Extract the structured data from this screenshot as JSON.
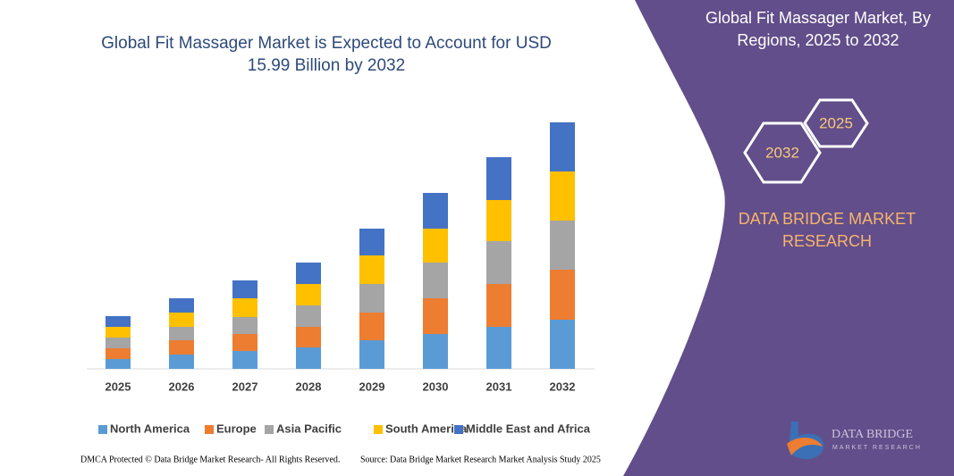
{
  "chart_data": {
    "type": "stacked_bar",
    "title": "Global Fit Massager Market is Expected to Account for USD 15.99 Billion by 2032",
    "categories": [
      "2025",
      "2026",
      "2027",
      "2028",
      "2029",
      "2030",
      "2031",
      "2032"
    ],
    "series": [
      {
        "name": "North America",
        "color": "#5b9bd5",
        "values": [
          11,
          16,
          20,
          24,
          32,
          39,
          47,
          55
        ]
      },
      {
        "name": "Europe",
        "color": "#ed7d31",
        "values": [
          12,
          16,
          19,
          23,
          31,
          40,
          48,
          56
        ]
      },
      {
        "name": "Asia Pacific",
        "color": "#a5a5a5",
        "values": [
          12,
          15,
          19,
          24,
          32,
          40,
          48,
          55
        ]
      },
      {
        "name": "South America",
        "color": "#ffc000",
        "values": [
          12,
          16,
          21,
          24,
          32,
          38,
          46,
          55
        ]
      },
      {
        "name": "Middle East and Africa",
        "color": "#4472c4",
        "values": [
          12,
          16,
          20,
          24,
          30,
          40,
          48,
          55
        ]
      }
    ],
    "ylim": [
      0,
      300
    ]
  },
  "side_panel": {
    "title": "Global Fit Massager Market, By Regions, 2025 to 2032",
    "hexagons": [
      "2032",
      "2025"
    ],
    "brand": "DATA BRIDGE MARKET RESEARCH",
    "logo": {
      "name": "DATA BRIDGE",
      "tagline": "MARKET RESEARCH"
    }
  },
  "footer": {
    "left": "DMCA Protected © Data Bridge Market Research- All Rights Reserved.",
    "right": "Source: Data Bridge Market Research Market Analysis Study 2025"
  }
}
